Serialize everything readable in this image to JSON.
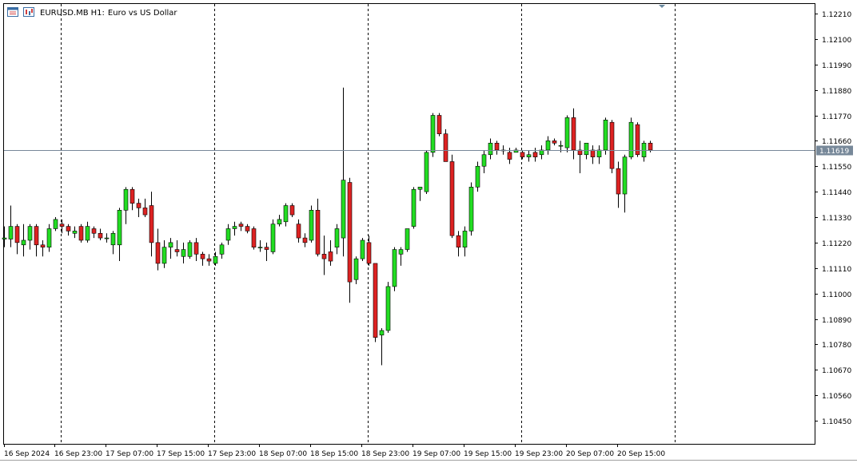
{
  "title": {
    "symbol": "EURUSD.MB",
    "timeframe": "H1:",
    "description": "Euro vs US Dollar"
  },
  "icons": [
    "window-icon",
    "chart-type-icon"
  ],
  "colors": {
    "bull": "#22dd22",
    "bear": "#dd2222",
    "price_line": "#778899",
    "price_label_bg": "#778899",
    "grid": "#000000",
    "background": "#ffffff"
  },
  "chart_data": {
    "type": "candlestick",
    "symbol": "EURUSD.MB",
    "timeframe": "H1",
    "current_price": "1.11619",
    "y_ticks": [
      "1.12210",
      "1.12100",
      "1.11990",
      "1.11880",
      "1.11770",
      "1.11660",
      "1.11550",
      "1.11440",
      "1.11330",
      "1.11220",
      "1.11110",
      "1.11000",
      "1.10890",
      "1.10780",
      "1.10670",
      "1.10560",
      "1.10450"
    ],
    "x_ticks": [
      "16 Sep 2024",
      "16 Sep 23:00",
      "17 Sep 07:00",
      "17 Sep 15:00",
      "17 Sep 23:00",
      "18 Sep 07:00",
      "18 Sep 15:00",
      "18 Sep 23:00",
      "19 Sep 07:00",
      "19 Sep 15:00",
      "19 Sep 23:00",
      "20 Sep 07:00",
      "20 Sep 15:00"
    ],
    "separators": [
      "17 Sep 00:00",
      "18 Sep 00:00",
      "19 Sep 00:00",
      "20 Sep 00:00",
      "21 Sep 00:00"
    ],
    "ylim": [
      1.1036,
      1.1226
    ],
    "grid": false,
    "candles": [
      {
        "o": 1.11235,
        "h": 1.1129,
        "l": 1.112,
        "c": 1.1124
      },
      {
        "o": 1.11235,
        "h": 1.1138,
        "l": 1.112,
        "c": 1.1129
      },
      {
        "o": 1.1129,
        "h": 1.113,
        "l": 1.1117,
        "c": 1.1122
      },
      {
        "o": 1.1121,
        "h": 1.113,
        "l": 1.1116,
        "c": 1.1123
      },
      {
        "o": 1.1123,
        "h": 1.113,
        "l": 1.1119,
        "c": 1.1129
      },
      {
        "o": 1.1129,
        "h": 1.113,
        "l": 1.1116,
        "c": 1.1121
      },
      {
        "o": 1.1121,
        "h": 1.1123,
        "l": 1.1116,
        "c": 1.112
      },
      {
        "o": 1.112,
        "h": 1.113,
        "l": 1.1118,
        "c": 1.1128
      },
      {
        "o": 1.1128,
        "h": 1.1133,
        "l": 1.1127,
        "c": 1.1132
      },
      {
        "o": 1.113,
        "h": 1.1132,
        "l": 1.1126,
        "c": 1.1129
      },
      {
        "o": 1.1129,
        "h": 1.113,
        "l": 1.1125,
        "c": 1.1127
      },
      {
        "o": 1.1126,
        "h": 1.1129,
        "l": 1.1124,
        "c": 1.1127
      },
      {
        "o": 1.1129,
        "h": 1.113,
        "l": 1.1122,
        "c": 1.1123
      },
      {
        "o": 1.1123,
        "h": 1.1131,
        "l": 1.1122,
        "c": 1.1129
      },
      {
        "o": 1.1128,
        "h": 1.1129,
        "l": 1.1124,
        "c": 1.1126
      },
      {
        "o": 1.1126,
        "h": 1.1128,
        "l": 1.1123,
        "c": 1.1124
      },
      {
        "o": 1.1124,
        "h": 1.1126,
        "l": 1.1122,
        "c": 1.1124
      },
      {
        "o": 1.1121,
        "h": 1.1127,
        "l": 1.1117,
        "c": 1.1126
      },
      {
        "o": 1.1121,
        "h": 1.1137,
        "l": 1.1114,
        "c": 1.1136
      },
      {
        "o": 1.1136,
        "h": 1.1146,
        "l": 1.113,
        "c": 1.1145
      },
      {
        "o": 1.1145,
        "h": 1.1146,
        "l": 1.1136,
        "c": 1.1139
      },
      {
        "o": 1.1139,
        "h": 1.1141,
        "l": 1.1133,
        "c": 1.1137
      },
      {
        "o": 1.1137,
        "h": 1.1141,
        "l": 1.1133,
        "c": 1.1134
      },
      {
        "o": 1.1138,
        "h": 1.1144,
        "l": 1.1116,
        "c": 1.1122
      },
      {
        "o": 1.1122,
        "h": 1.1128,
        "l": 1.111,
        "c": 1.1113
      },
      {
        "o": 1.1113,
        "h": 1.1123,
        "l": 1.1111,
        "c": 1.112
      },
      {
        "o": 1.112,
        "h": 1.1124,
        "l": 1.1115,
        "c": 1.1122
      },
      {
        "o": 1.1119,
        "h": 1.1123,
        "l": 1.1116,
        "c": 1.1118
      },
      {
        "o": 1.1116,
        "h": 1.1122,
        "l": 1.1113,
        "c": 1.1119
      },
      {
        "o": 1.1116,
        "h": 1.1123,
        "l": 1.1115,
        "c": 1.1122
      },
      {
        "o": 1.1122,
        "h": 1.1124,
        "l": 1.1114,
        "c": 1.1117
      },
      {
        "o": 1.1117,
        "h": 1.1118,
        "l": 1.1112,
        "c": 1.1115
      },
      {
        "o": 1.1115,
        "h": 1.1117,
        "l": 1.1112,
        "c": 1.1114
      },
      {
        "o": 1.1113,
        "h": 1.1118,
        "l": 1.1112,
        "c": 1.1116
      },
      {
        "o": 1.1117,
        "h": 1.1122,
        "l": 1.1115,
        "c": 1.1121
      },
      {
        "o": 1.1123,
        "h": 1.113,
        "l": 1.1121,
        "c": 1.1128
      },
      {
        "o": 1.1128,
        "h": 1.1131,
        "l": 1.1125,
        "c": 1.1129
      },
      {
        "o": 1.113,
        "h": 1.1131,
        "l": 1.1127,
        "c": 1.1129
      },
      {
        "o": 1.1129,
        "h": 1.113,
        "l": 1.1126,
        "c": 1.1127
      },
      {
        "o": 1.1128,
        "h": 1.1129,
        "l": 1.1119,
        "c": 1.112
      },
      {
        "o": 1.112,
        "h": 1.1123,
        "l": 1.1118,
        "c": 1.112
      },
      {
        "o": 1.112,
        "h": 1.1122,
        "l": 1.1114,
        "c": 1.1119
      },
      {
        "o": 1.1118,
        "h": 1.1132,
        "l": 1.1117,
        "c": 1.113
      },
      {
        "o": 1.113,
        "h": 1.1134,
        "l": 1.1129,
        "c": 1.1132
      },
      {
        "o": 1.1131,
        "h": 1.1139,
        "l": 1.1129,
        "c": 1.1138
      },
      {
        "o": 1.1138,
        "h": 1.1139,
        "l": 1.1133,
        "c": 1.1134
      },
      {
        "o": 1.113,
        "h": 1.1132,
        "l": 1.1122,
        "c": 1.1124
      },
      {
        "o": 1.1124,
        "h": 1.1126,
        "l": 1.112,
        "c": 1.1122
      },
      {
        "o": 1.1123,
        "h": 1.1138,
        "l": 1.1122,
        "c": 1.1136
      },
      {
        "o": 1.1136,
        "h": 1.1141,
        "l": 1.1116,
        "c": 1.1117
      },
      {
        "o": 1.1117,
        "h": 1.1125,
        "l": 1.1108,
        "c": 1.1115
      },
      {
        "o": 1.1118,
        "h": 1.1123,
        "l": 1.1112,
        "c": 1.1114
      },
      {
        "o": 1.112,
        "h": 1.113,
        "l": 1.1117,
        "c": 1.1128
      },
      {
        "o": 1.1124,
        "h": 1.1189,
        "l": 1.1116,
        "c": 1.1149
      },
      {
        "o": 1.1148,
        "h": 1.115,
        "l": 1.1096,
        "c": 1.1105
      },
      {
        "o": 1.1106,
        "h": 1.1116,
        "l": 1.1104,
        "c": 1.1115
      },
      {
        "o": 1.1115,
        "h": 1.1124,
        "l": 1.1114,
        "c": 1.1123
      },
      {
        "o": 1.1122,
        "h": 1.1125,
        "l": 1.1112,
        "c": 1.1113
      },
      {
        "o": 1.1113,
        "h": 1.1113,
        "l": 1.1079,
        "c": 1.1081
      },
      {
        "o": 1.1082,
        "h": 1.1085,
        "l": 1.1069,
        "c": 1.1084
      },
      {
        "o": 1.1084,
        "h": 1.1105,
        "l": 1.1083,
        "c": 1.1103
      },
      {
        "o": 1.1103,
        "h": 1.112,
        "l": 1.1101,
        "c": 1.1119
      },
      {
        "o": 1.1117,
        "h": 1.112,
        "l": 1.1112,
        "c": 1.1119
      },
      {
        "o": 1.1119,
        "h": 1.1128,
        "l": 1.1118,
        "c": 1.1128
      },
      {
        "o": 1.1129,
        "h": 1.1146,
        "l": 1.1128,
        "c": 1.1145
      },
      {
        "o": 1.1145,
        "h": 1.1146,
        "l": 1.114,
        "c": 1.1146
      },
      {
        "o": 1.1144,
        "h": 1.1162,
        "l": 1.1143,
        "c": 1.1161
      },
      {
        "o": 1.1161,
        "h": 1.1178,
        "l": 1.1159,
        "c": 1.1177
      },
      {
        "o": 1.1177,
        "h": 1.1178,
        "l": 1.1168,
        "c": 1.1169
      },
      {
        "o": 1.1169,
        "h": 1.1171,
        "l": 1.1157,
        "c": 1.1157
      },
      {
        "o": 1.1157,
        "h": 1.116,
        "l": 1.1124,
        "c": 1.1125
      },
      {
        "o": 1.1125,
        "h": 1.1127,
        "l": 1.1116,
        "c": 1.112
      },
      {
        "o": 1.112,
        "h": 1.1129,
        "l": 1.1116,
        "c": 1.1127
      },
      {
        "o": 1.1127,
        "h": 1.1148,
        "l": 1.1125,
        "c": 1.1146
      },
      {
        "o": 1.1146,
        "h": 1.1157,
        "l": 1.1144,
        "c": 1.1155
      },
      {
        "o": 1.1155,
        "h": 1.1162,
        "l": 1.1152,
        "c": 1.116
      },
      {
        "o": 1.116,
        "h": 1.1167,
        "l": 1.1158,
        "c": 1.1165
      },
      {
        "o": 1.1165,
        "h": 1.1166,
        "l": 1.116,
        "c": 1.1162
      },
      {
        "o": 1.1162,
        "h": 1.1164,
        "l": 1.116,
        "c": 1.1162
      },
      {
        "o": 1.1161,
        "h": 1.1163,
        "l": 1.1156,
        "c": 1.1158
      },
      {
        "o": 1.1161,
        "h": 1.1163,
        "l": 1.1161,
        "c": 1.1162
      },
      {
        "o": 1.1161,
        "h": 1.1162,
        "l": 1.1158,
        "c": 1.1159
      },
      {
        "o": 1.1159,
        "h": 1.1162,
        "l": 1.1157,
        "c": 1.116
      },
      {
        "o": 1.1161,
        "h": 1.1163,
        "l": 1.1157,
        "c": 1.1159
      },
      {
        "o": 1.116,
        "h": 1.1164,
        "l": 1.1158,
        "c": 1.1162
      },
      {
        "o": 1.1162,
        "h": 1.1168,
        "l": 1.116,
        "c": 1.1166
      },
      {
        "o": 1.1166,
        "h": 1.1167,
        "l": 1.1164,
        "c": 1.1165
      },
      {
        "o": 1.1164,
        "h": 1.1166,
        "l": 1.1161,
        "c": 1.1164
      },
      {
        "o": 1.1163,
        "h": 1.1177,
        "l": 1.1161,
        "c": 1.1176
      },
      {
        "o": 1.1176,
        "h": 1.118,
        "l": 1.1158,
        "c": 1.1162
      },
      {
        "o": 1.1162,
        "h": 1.1166,
        "l": 1.1152,
        "c": 1.116
      },
      {
        "o": 1.116,
        "h": 1.1164,
        "l": 1.1158,
        "c": 1.1165
      },
      {
        "o": 1.1162,
        "h": 1.1164,
        "l": 1.1156,
        "c": 1.1159
      },
      {
        "o": 1.1159,
        "h": 1.1164,
        "l": 1.1156,
        "c": 1.1162
      },
      {
        "o": 1.1162,
        "h": 1.1176,
        "l": 1.116,
        "c": 1.1175
      },
      {
        "o": 1.1174,
        "h": 1.1175,
        "l": 1.1152,
        "c": 1.1154
      },
      {
        "o": 1.1154,
        "h": 1.1157,
        "l": 1.1137,
        "c": 1.1143
      },
      {
        "o": 1.1143,
        "h": 1.116,
        "l": 1.1135,
        "c": 1.1159
      },
      {
        "o": 1.1159,
        "h": 1.1176,
        "l": 1.1158,
        "c": 1.1174
      },
      {
        "o": 1.1173,
        "h": 1.1174,
        "l": 1.1159,
        "c": 1.116
      },
      {
        "o": 1.1159,
        "h": 1.1166,
        "l": 1.1157,
        "c": 1.1165
      },
      {
        "o": 1.1165,
        "h": 1.1166,
        "l": 1.1161,
        "c": 1.1162
      }
    ]
  }
}
